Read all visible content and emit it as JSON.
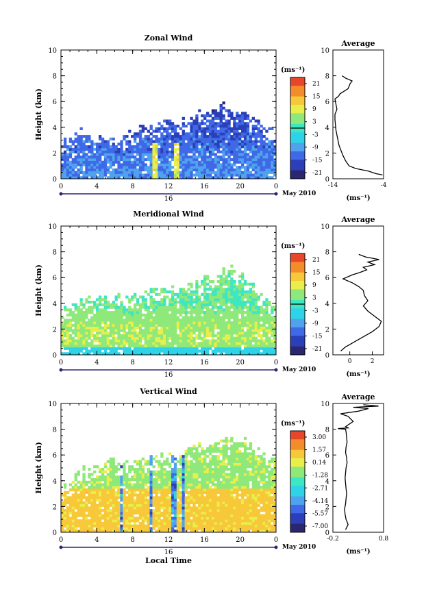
{
  "figure": {
    "xlabel": "Local Time",
    "day_label": "16",
    "date_label": "May 2010"
  },
  "chart_data": [
    {
      "type": "heatmap",
      "title": "Zonal Wind",
      "ylabel": "Height (km)",
      "xlim": [
        0,
        24
      ],
      "ylim": [
        0,
        10
      ],
      "xticks": [
        "0",
        "4",
        "8",
        "12",
        "16",
        "20",
        "0"
      ],
      "yticks": [
        "0",
        "2",
        "4",
        "6",
        "8",
        "10"
      ],
      "colorbar_unit": "(ms⁻¹)",
      "colorbar_ticks": [
        "21",
        "15",
        "9",
        "3",
        "-3",
        "-9",
        "-15",
        "-21"
      ],
      "colorbar_range": [
        -24,
        24
      ],
      "colormap": [
        "#2a2670",
        "#2b3fb8",
        "#3f69e6",
        "#4fa3ee",
        "#2fd3e8",
        "#3ee6c2",
        "#8fe87a",
        "#e8ef4a",
        "#f7c839",
        "#f58c2c",
        "#e8462a"
      ],
      "data_envelope_km": [
        [
          0,
          3.0
        ],
        [
          1,
          3.1
        ],
        [
          2,
          3.8
        ],
        [
          3,
          3.6
        ],
        [
          4,
          3.2
        ],
        [
          5,
          3.5
        ],
        [
          6,
          3.6
        ],
        [
          7,
          3.7
        ],
        [
          8,
          3.8
        ],
        [
          9,
          4.0
        ],
        [
          10,
          4.2
        ],
        [
          11,
          4.3
        ],
        [
          12,
          4.6
        ],
        [
          13,
          4.4
        ],
        [
          14,
          4.8
        ],
        [
          15,
          4.9
        ],
        [
          16,
          5.4
        ],
        [
          17,
          5.1
        ],
        [
          18,
          5.8
        ],
        [
          19,
          5.6
        ],
        [
          20,
          5.2
        ],
        [
          21,
          4.8
        ],
        [
          22,
          4.5
        ],
        [
          23,
          4.0
        ],
        [
          24,
          3.6
        ]
      ],
      "average_profile": {
        "title": "Average",
        "xlabel": "(ms⁻¹)",
        "xlim": [
          -14,
          -4
        ],
        "xticks": [
          "-14",
          "-4"
        ],
        "ylim": [
          0,
          10
        ],
        "yticks": [
          "0",
          "2",
          "4",
          "6",
          "8",
          "10"
        ],
        "x": [
          -4.2,
          -5.5,
          -7.0,
          -9.5,
          -10.8,
          -11.5,
          -12.0,
          -12.4,
          -12.8,
          -13.0,
          -13.2,
          -13.4,
          -13.5,
          -13.6,
          -13.6,
          -13.2,
          -13.4,
          -13.6,
          -12.9,
          -12.6,
          -11.8,
          -11.0,
          -10.8,
          -10.6,
          -10.2,
          -11.4,
          -12.2
        ],
        "heights": [
          0.3,
          0.4,
          0.6,
          0.8,
          1.0,
          1.4,
          1.8,
          2.2,
          2.6,
          3.0,
          3.4,
          3.8,
          4.2,
          4.6,
          5.0,
          5.4,
          5.8,
          6.2,
          6.4,
          6.6,
          6.8,
          7.0,
          7.2,
          7.4,
          7.6,
          7.8,
          8.0
        ]
      }
    },
    {
      "type": "heatmap",
      "title": "Meridional Wind",
      "ylabel": "Height (km)",
      "xlim": [
        0,
        24
      ],
      "ylim": [
        0,
        10
      ],
      "xticks": [
        "0",
        "4",
        "8",
        "12",
        "16",
        "20",
        "0"
      ],
      "yticks": [
        "0",
        "2",
        "4",
        "6",
        "8",
        "10"
      ],
      "colorbar_unit": "(ms⁻¹)",
      "colorbar_ticks": [
        "21",
        "15",
        "9",
        "3",
        "-3",
        "-9",
        "-15",
        "-21"
      ],
      "colorbar_range": [
        -24,
        24
      ],
      "colormap": [
        "#2a2670",
        "#2b3fb8",
        "#3f69e6",
        "#4fa3ee",
        "#2fd3e8",
        "#3ee6c2",
        "#8fe87a",
        "#e8ef4a",
        "#f7c839",
        "#f58c2c",
        "#e8462a"
      ],
      "data_envelope_km": [
        [
          0,
          3.4
        ],
        [
          1,
          3.6
        ],
        [
          2,
          4.6
        ],
        [
          3,
          4.7
        ],
        [
          4,
          4.4
        ],
        [
          5,
          4.6
        ],
        [
          6,
          4.5
        ],
        [
          7,
          4.6
        ],
        [
          8,
          4.6
        ],
        [
          9,
          4.8
        ],
        [
          10,
          5.0
        ],
        [
          11,
          5.1
        ],
        [
          12,
          5.2
        ],
        [
          13,
          5.0
        ],
        [
          14,
          5.2
        ],
        [
          15,
          5.5
        ],
        [
          16,
          6.0
        ],
        [
          17,
          5.8
        ],
        [
          18,
          6.4
        ],
        [
          19,
          6.7
        ],
        [
          20,
          6.2
        ],
        [
          21,
          5.6
        ],
        [
          22,
          5.0
        ],
        [
          23,
          4.6
        ],
        [
          24,
          4.2
        ]
      ],
      "average_profile": {
        "title": "Average",
        "xlabel": "(ms⁻¹)",
        "xlim": [
          -1.5,
          3
        ],
        "xticks": [
          "0",
          "2"
        ],
        "ylim": [
          0,
          10
        ],
        "yticks": [
          "0",
          "2",
          "4",
          "6",
          "8",
          "10"
        ],
        "x": [
          -0.8,
          -0.4,
          0.4,
          1.2,
          2.0,
          2.6,
          2.8,
          2.2,
          1.6,
          1.2,
          1.6,
          1.3,
          1.2,
          0.8,
          0.2,
          -0.6,
          0.2,
          0.9,
          1.5,
          1.2,
          2.2,
          1.6,
          2.6,
          1.4,
          0.8
        ],
        "heights": [
          0.3,
          0.6,
          1.0,
          1.4,
          1.8,
          2.2,
          2.6,
          3.0,
          3.4,
          3.8,
          4.2,
          4.6,
          5.0,
          5.3,
          5.6,
          5.9,
          6.2,
          6.4,
          6.6,
          6.8,
          7.0,
          7.2,
          7.4,
          7.6,
          7.8
        ]
      }
    },
    {
      "type": "heatmap",
      "title": "Vertical Wind",
      "ylabel": "Height (km)",
      "xlim": [
        0,
        24
      ],
      "ylim": [
        0,
        10
      ],
      "xticks": [
        "0",
        "4",
        "8",
        "12",
        "16",
        "20",
        "0"
      ],
      "yticks": [
        "0",
        "2",
        "4",
        "6",
        "8",
        "10"
      ],
      "colorbar_unit": "(ms⁻¹)",
      "colorbar_ticks": [
        "3.00",
        "1.57",
        "0.14",
        "-1.28",
        "-2.71",
        "-4.14",
        "-5.57",
        "-7.00"
      ],
      "colorbar_range": [
        -7.7,
        3.7
      ],
      "colormap": [
        "#2a2670",
        "#2b3fb8",
        "#3f69e6",
        "#4fa3ee",
        "#2fd3e8",
        "#3ee6c2",
        "#8fe87a",
        "#e8ef4a",
        "#f7c839",
        "#f58c2c",
        "#e8462a"
      ],
      "data_envelope_km": [
        [
          0,
          3.4
        ],
        [
          1,
          3.8
        ],
        [
          2,
          4.8
        ],
        [
          3,
          5.0
        ],
        [
          4,
          5.2
        ],
        [
          5,
          5.4
        ],
        [
          6,
          5.5
        ],
        [
          7,
          5.4
        ],
        [
          8,
          5.6
        ],
        [
          9,
          5.8
        ],
        [
          10,
          5.8
        ],
        [
          11,
          6.0
        ],
        [
          12,
          6.2
        ],
        [
          13,
          5.8
        ],
        [
          14,
          6.4
        ],
        [
          15,
          6.8
        ],
        [
          16,
          6.8
        ],
        [
          17,
          7.0
        ],
        [
          18,
          7.2
        ],
        [
          19,
          7.6
        ],
        [
          20,
          7.4
        ],
        [
          21,
          7.0
        ],
        [
          22,
          6.6
        ],
        [
          23,
          6.2
        ],
        [
          24,
          5.6
        ]
      ],
      "average_profile": {
        "title": "Average",
        "xlabel": "(ms⁻¹)",
        "xlim": [
          -0.2,
          0.8
        ],
        "xticks": [
          "-0.2",
          "0.8"
        ],
        "ylim": [
          0,
          10
        ],
        "yticks": [
          "0",
          "2",
          "4",
          "6",
          "8",
          "10"
        ],
        "x": [
          0.05,
          0.1,
          0.06,
          0.04,
          0.03,
          0.05,
          0.06,
          0.07,
          0.06,
          0.05,
          0.04,
          0.05,
          0.06,
          0.08,
          0.07,
          0.05,
          0.06,
          0.08,
          0.07,
          0.06,
          0.05,
          -0.1,
          0.1,
          0.05,
          0.2,
          0.1,
          -0.05,
          0.3,
          0.5,
          0.2,
          0.7,
          0.4
        ],
        "heights": [
          0.2,
          0.6,
          1.0,
          1.4,
          1.8,
          2.2,
          2.6,
          3.0,
          3.4,
          3.8,
          4.2,
          4.6,
          5.0,
          5.4,
          5.8,
          6.2,
          6.6,
          7.0,
          7.4,
          7.8,
          8.0,
          8.05,
          8.1,
          8.2,
          8.6,
          9.0,
          9.2,
          9.4,
          9.6,
          9.7,
          9.8,
          9.9
        ]
      }
    }
  ]
}
